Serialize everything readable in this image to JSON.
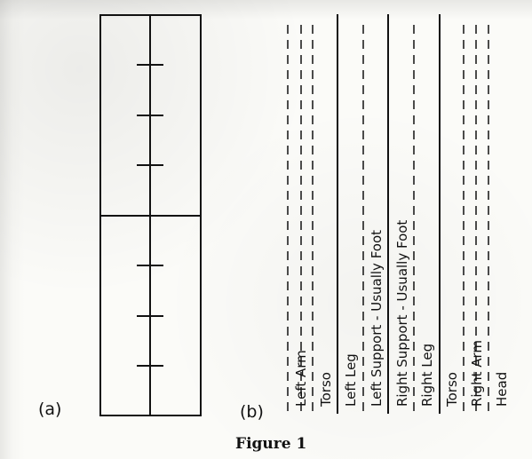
{
  "figure": {
    "caption": "Figure 1",
    "panel_a": {
      "label": "(a)"
    },
    "panel_b": {
      "label": "(b)",
      "column_labels": [
        "Left Arm",
        "Torso",
        "Left Leg",
        "Left Support - Usually Foot",
        "Right Support - Usually Foot",
        "Right Leg",
        "Torso",
        "Right Arm",
        "Head"
      ]
    }
  }
}
